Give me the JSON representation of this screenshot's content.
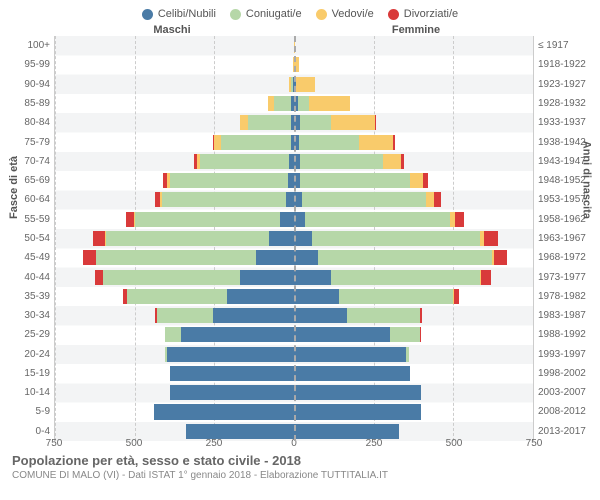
{
  "legend": [
    {
      "label": "Celibi/Nubili",
      "color": "#4a7ba6"
    },
    {
      "label": "Coniugati/e",
      "color": "#b6d7a8"
    },
    {
      "label": "Vedovi/e",
      "color": "#f9cb6b"
    },
    {
      "label": "Divorziati/e",
      "color": "#d93a3a"
    }
  ],
  "headers": {
    "male": "Maschi",
    "female": "Femmine"
  },
  "axis_titles": {
    "left": "Fasce di età",
    "right": "Anni di nascita"
  },
  "footer": {
    "title": "Popolazione per età, sesso e stato civile - 2018",
    "sub": "COMUNE DI MALO (VI) - Dati ISTAT 1° gennaio 2018 - Elaborazione TUTTITALIA.IT"
  },
  "colors": {
    "celibi": "#4a7ba6",
    "coniugati": "#b6d7a8",
    "vedovi": "#f9cb6b",
    "divorziati": "#d93a3a",
    "grid": "#cccccc",
    "band_bg": "#f3f4f5",
    "text": "#666666"
  },
  "xmax": 750,
  "xticks": [
    0,
    250,
    500,
    750
  ],
  "age_groups": [
    {
      "age": "100+",
      "year": "≤ 1917",
      "m": [
        0,
        0,
        0,
        0
      ],
      "f": [
        1,
        0,
        2,
        0
      ]
    },
    {
      "age": "95-99",
      "year": "1918-1922",
      "m": [
        1,
        0,
        3,
        0
      ],
      "f": [
        0,
        0,
        15,
        0
      ]
    },
    {
      "age": "90-94",
      "year": "1923-1927",
      "m": [
        3,
        5,
        8,
        0
      ],
      "f": [
        5,
        2,
        60,
        0
      ]
    },
    {
      "age": "85-89",
      "year": "1928-1932",
      "m": [
        8,
        55,
        20,
        0
      ],
      "f": [
        12,
        35,
        130,
        0
      ]
    },
    {
      "age": "80-84",
      "year": "1933-1937",
      "m": [
        10,
        135,
        25,
        0
      ],
      "f": [
        20,
        95,
        140,
        3
      ]
    },
    {
      "age": "75-79",
      "year": "1938-1942",
      "m": [
        10,
        220,
        20,
        5
      ],
      "f": [
        15,
        190,
        105,
        8
      ]
    },
    {
      "age": "70-74",
      "year": "1943-1947",
      "m": [
        15,
        280,
        10,
        8
      ],
      "f": [
        20,
        260,
        55,
        10
      ]
    },
    {
      "age": "65-69",
      "year": "1948-1952",
      "m": [
        20,
        370,
        8,
        12
      ],
      "f": [
        20,
        345,
        40,
        15
      ]
    },
    {
      "age": "60-64",
      "year": "1953-1957",
      "m": [
        25,
        390,
        5,
        15
      ],
      "f": [
        25,
        390,
        25,
        20
      ]
    },
    {
      "age": "55-59",
      "year": "1958-1962",
      "m": [
        45,
        455,
        3,
        25
      ],
      "f": [
        35,
        455,
        15,
        30
      ]
    },
    {
      "age": "50-54",
      "year": "1963-1967",
      "m": [
        80,
        510,
        2,
        40
      ],
      "f": [
        55,
        530,
        10,
        45
      ]
    },
    {
      "age": "45-49",
      "year": "1968-1972",
      "m": [
        120,
        500,
        2,
        40
      ],
      "f": [
        75,
        545,
        8,
        42
      ]
    },
    {
      "age": "40-44",
      "year": "1973-1977",
      "m": [
        170,
        430,
        1,
        25
      ],
      "f": [
        115,
        470,
        3,
        30
      ]
    },
    {
      "age": "35-39",
      "year": "1978-1982",
      "m": [
        210,
        315,
        0,
        12
      ],
      "f": [
        140,
        360,
        1,
        18
      ]
    },
    {
      "age": "30-34",
      "year": "1983-1987",
      "m": [
        255,
        175,
        0,
        5
      ],
      "f": [
        165,
        230,
        0,
        8
      ]
    },
    {
      "age": "25-29",
      "year": "1988-1992",
      "m": [
        355,
        50,
        0,
        1
      ],
      "f": [
        300,
        95,
        0,
        2
      ]
    },
    {
      "age": "20-24",
      "year": "1993-1997",
      "m": [
        400,
        5,
        0,
        0
      ],
      "f": [
        350,
        10,
        0,
        0
      ]
    },
    {
      "age": "15-19",
      "year": "1998-2002",
      "m": [
        390,
        0,
        0,
        0
      ],
      "f": [
        365,
        0,
        0,
        0
      ]
    },
    {
      "age": "10-14",
      "year": "2003-2007",
      "m": [
        390,
        0,
        0,
        0
      ],
      "f": [
        400,
        0,
        0,
        0
      ]
    },
    {
      "age": "5-9",
      "year": "2008-2012",
      "m": [
        440,
        0,
        0,
        0
      ],
      "f": [
        400,
        0,
        0,
        0
      ]
    },
    {
      "age": "0-4",
      "year": "2013-2017",
      "m": [
        340,
        0,
        0,
        0
      ],
      "f": [
        330,
        0,
        0,
        0
      ]
    }
  ]
}
